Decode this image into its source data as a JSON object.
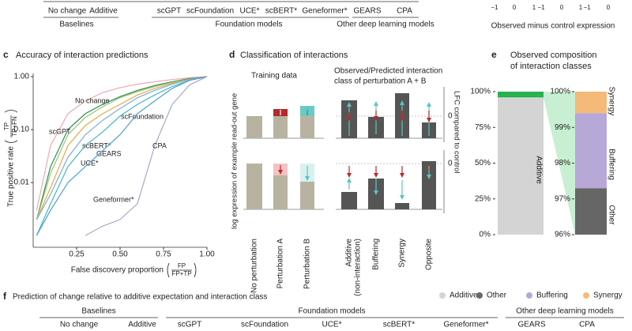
{
  "top": {
    "methods": [
      "No change",
      "Additive",
      "scGPT",
      "scFoundation",
      "UCE*",
      "scBERT*",
      "Geneformer*",
      "GEARS",
      "CPA"
    ],
    "groups": [
      "Baselines",
      "Foundation models",
      "Other deep learning models"
    ],
    "scatter_ticks": [
      "−1",
      "0",
      "1",
      "−1",
      "0",
      "1",
      "−1",
      "0"
    ],
    "scatter_xlabel": "Observed minus control expression"
  },
  "panel_letters": [
    "c",
    "d",
    "e",
    "f"
  ],
  "chart_data": [
    {
      "type": "line",
      "title": "Accuracy of interaction predictions",
      "xlabel": "False discovery proportion",
      "xlabel_fraction": [
        "FP",
        "FP+TP"
      ],
      "ylabel": "True positive rate",
      "ylabel_fraction": [
        "TP",
        "TP+FN"
      ],
      "x": [
        0.02,
        0.1,
        0.2,
        0.3,
        0.4,
        0.5,
        0.6,
        0.7,
        0.8,
        0.9,
        1.0
      ],
      "xlim": [
        0,
        1
      ],
      "xticks": [
        0.25,
        {
          "value": 0.5,
          "label": "0.50"
        },
        0.75,
        {
          "value": 1,
          "label": "1.00"
        }
      ],
      "ylim": [
        0.0006,
        1
      ],
      "log_y": true,
      "yticks": [
        0.01,
        {
          "value": 0.1,
          "label": "0.10"
        },
        {
          "value": 1,
          "label": "1.00"
        }
      ],
      "series": [
        {
          "name": "No change",
          "color": "#f0a8b0",
          "values": [
            0.003,
            0.05,
            0.2,
            0.35,
            0.5,
            0.62,
            0.72,
            0.8,
            0.88,
            0.95,
            1.0
          ]
        },
        {
          "name": "scGPT",
          "color": "#2e8b57",
          "values": [
            0.002,
            0.02,
            0.1,
            0.2,
            0.3,
            0.42,
            0.55,
            0.68,
            0.8,
            0.92,
            1.0
          ]
        },
        {
          "name": "scFoundation",
          "color": "#9cc46a",
          "values": [
            0.002,
            0.015,
            0.08,
            0.17,
            0.27,
            0.4,
            0.52,
            0.65,
            0.78,
            0.9,
            1.0
          ]
        },
        {
          "name": "scBERT*",
          "color": "#e8a848",
          "values": [
            0.002,
            0.008,
            0.05,
            0.12,
            0.2,
            0.3,
            0.45,
            0.6,
            0.75,
            0.9,
            1.0
          ]
        },
        {
          "name": "GEARS",
          "color": "#7aaed8",
          "values": [
            0.002,
            0.006,
            0.03,
            0.08,
            0.15,
            0.25,
            0.4,
            0.55,
            0.72,
            0.88,
            1.0
          ]
        },
        {
          "name": "UCE*",
          "color": "#40b8c8",
          "values": [
            0.001,
            0.004,
            0.02,
            0.05,
            0.09,
            0.18,
            0.3,
            0.45,
            0.65,
            0.85,
            1.0
          ]
        },
        {
          "name": "Geneformer*",
          "color": "#4a9ed8",
          "values": [
            0.001,
            0.003,
            0.01,
            0.02,
            0.04,
            0.08,
            0.2,
            0.35,
            0.6,
            0.85,
            1.0
          ]
        },
        {
          "name": "CPA",
          "color": "#a8a8c8",
          "values": [
            null,
            null,
            null,
            0.001,
            0.0015,
            0.002,
            0.004,
            0.05,
            0.3,
            0.7,
            1.0
          ]
        }
      ]
    },
    {
      "type": "stacked_bar",
      "title_lines": [
        "Observed composition",
        "of interaction classes"
      ],
      "ylim": [
        0,
        100
      ],
      "yticks": [
        {
          "value": 100,
          "label": "100%"
        },
        {
          "value": 75,
          "label": "75%"
        },
        {
          "value": 50,
          "label": "50%"
        },
        {
          "value": 25,
          "label": "25%"
        },
        {
          "value": 0,
          "label": "0%"
        }
      ],
      "y2lim": [
        96,
        100
      ],
      "y2ticks": [
        {
          "value": 100,
          "label": "100%"
        },
        {
          "value": 99,
          "label": "99%"
        },
        {
          "value": 98,
          "label": "98%"
        },
        {
          "value": 97,
          "label": "97%"
        },
        {
          "value": 96,
          "label": "96%"
        }
      ],
      "highlight_color": "#22b04a",
      "series": [
        {
          "name": "Additive",
          "color": "#d4d4d4",
          "values": [
            96
          ]
        },
        {
          "name": "Other",
          "color": "#666666",
          "values": [
            1.3
          ]
        },
        {
          "name": "Buffering",
          "color": "#b8a8d8",
          "values": [
            2.1
          ]
        },
        {
          "name": "Synergy",
          "color": "#f5b97a",
          "values": [
            0.6
          ]
        }
      ]
    }
  ],
  "panel_d": {
    "title": "Classification of interactions",
    "training": "Training data",
    "observed_lines": [
      "Observed/Predicted interaction",
      "class of perturbation A + B"
    ],
    "ylabel": "log expression of example read-out gene",
    "y2label": "LFC compared to control",
    "zero_ticks": [
      "0",
      "0"
    ],
    "categories": [
      "No perturbation",
      "Perturbation A",
      "Perturbation B",
      "Additive",
      "Buffering",
      "Synergy",
      "Opposite"
    ],
    "additive_note": "(non-interaction)"
  },
  "panel_f": {
    "title": "Prediction of change relative to additive expectation and interaction class",
    "legend": [
      {
        "name": "Additive",
        "color": "#d4d4d4"
      },
      {
        "name": "Other",
        "color": "#666666"
      },
      {
        "name": "Buffering",
        "color": "#b8a8d8"
      },
      {
        "name": "Synergy",
        "color": "#f5b97a"
      }
    ],
    "groups": [
      "Baselines",
      "Foundation models",
      "Other deep learning models"
    ],
    "methods": [
      "No change",
      "Additive",
      "scGPT",
      "scFoundation",
      "UCE*",
      "scBERT*",
      "Geneformer*",
      "GEARS",
      "CPA"
    ]
  }
}
